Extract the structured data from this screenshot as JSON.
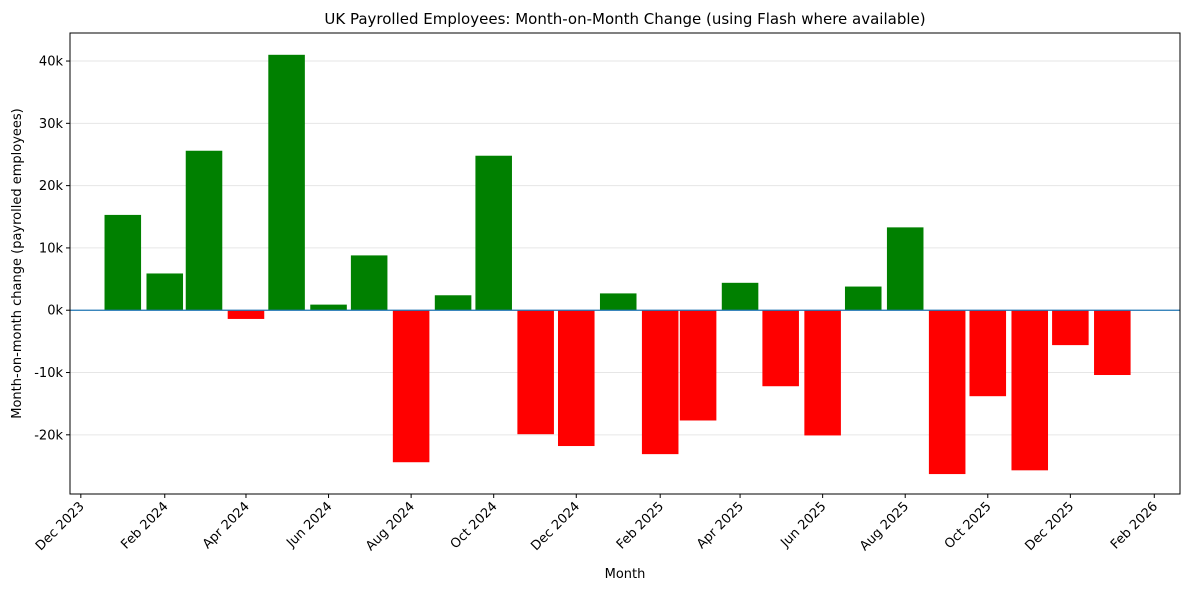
{
  "chart_data": {
    "type": "bar",
    "title": "UK Payrolled Employees: Month-on-Month Change (using Flash where available)",
    "xlabel": "Month",
    "ylabel": "Month-on-month change (payrolled employees)",
    "x": [
      "2024-01",
      "2024-02",
      "2024-03",
      "2024-04",
      "2024-05",
      "2024-06",
      "2024-07",
      "2024-08",
      "2024-09",
      "2024-10",
      "2024-11",
      "2024-12",
      "2025-01",
      "2025-02",
      "2025-03",
      "2025-04",
      "2025-05",
      "2025-06",
      "2025-07",
      "2025-08",
      "2025-09",
      "2025-10",
      "2025-11",
      "2025-12",
      "2026-01"
    ],
    "values": [
      15300,
      5900,
      25600,
      -1400,
      41000,
      900,
      8800,
      -24400,
      2400,
      24800,
      -19900,
      -21800,
      2700,
      -23100,
      -17700,
      4400,
      -12200,
      -20100,
      3800,
      13300,
      -26300,
      -13800,
      -25700,
      -5600,
      -10400
    ],
    "ylim": [
      -29500,
      44500
    ],
    "yticks": [
      -20000,
      -10000,
      0,
      10000,
      20000,
      30000,
      40000
    ],
    "ytick_labels": [
      "-20k",
      "-10k",
      "0k",
      "10k",
      "20k",
      "30k",
      "40k"
    ],
    "xlim": [
      "2023-11-23",
      "2026-02-20"
    ],
    "xticks": [
      "2023-12-01",
      "2024-02-01",
      "2024-04-01",
      "2024-06-01",
      "2024-08-01",
      "2024-10-01",
      "2024-12-01",
      "2025-02-01",
      "2025-04-01",
      "2025-06-01",
      "2025-08-01",
      "2025-10-01",
      "2025-12-01",
      "2026-02-01"
    ],
    "xtick_labels": [
      "Dec 2023",
      "Feb 2024",
      "Apr 2024",
      "Jun 2024",
      "Aug 2024",
      "Oct 2024",
      "Dec 2024",
      "Feb 2025",
      "Apr 2025",
      "Jun 2025",
      "Aug 2025",
      "Oct 2025",
      "Dec 2025",
      "Feb 2026"
    ],
    "grid": "horizontal",
    "colors": {
      "positive": "#008000",
      "negative": "#ff0000",
      "zero_line": "#1f77b4",
      "grid": "#e6e6e6"
    }
  }
}
